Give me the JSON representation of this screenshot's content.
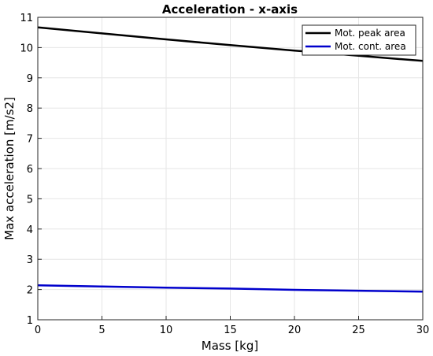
{
  "chart_data": {
    "type": "line",
    "title": "Acceleration - x-axis",
    "xlabel": "Mass [kg]",
    "ylabel": "Max acceleration [m/s2]",
    "xlim": [
      0,
      30
    ],
    "ylim": [
      1,
      11
    ],
    "xticks": [
      0,
      5,
      10,
      15,
      20,
      25,
      30
    ],
    "yticks": [
      1,
      2,
      3,
      4,
      5,
      6,
      7,
      8,
      9,
      10,
      11
    ],
    "grid": true,
    "legend_position": "top-right",
    "series": [
      {
        "name": "Mot. peak area",
        "color": "#000000",
        "x": [
          0,
          5,
          10,
          15,
          20,
          25,
          30
        ],
        "y": [
          10.67,
          10.47,
          10.27,
          10.08,
          9.9,
          9.73,
          9.56
        ]
      },
      {
        "name": "Mot. cont. area",
        "color": "#0000cc",
        "x": [
          0,
          5,
          10,
          15,
          20,
          25,
          30
        ],
        "y": [
          2.14,
          2.1,
          2.06,
          2.03,
          1.99,
          1.96,
          1.93
        ]
      }
    ]
  }
}
